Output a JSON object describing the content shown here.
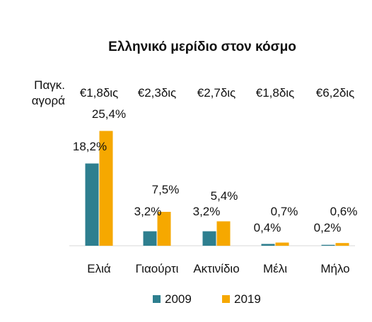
{
  "chart_data": {
    "type": "bar",
    "title": "Ελληνικό μερίδιο στον κόσμο",
    "market_label": [
      "Παγκ.",
      "αγορά"
    ],
    "categories": [
      "Ελιά",
      "Γιαούρτι",
      "Ακτινίδιο",
      "Μέλι",
      "Μήλο"
    ],
    "market_values": [
      "€1,8δις",
      "€2,3δις",
      "€2,7δις",
      "€1,8δις",
      "€6,2δις"
    ],
    "series": [
      {
        "name": "2009",
        "color": "#2e7f8f",
        "values": [
          18.2,
          3.2,
          3.2,
          0.4,
          0.2
        ],
        "labels": [
          "18,2%",
          "3,2%",
          "3,2%",
          "0,4%",
          "0,2%"
        ]
      },
      {
        "name": "2019",
        "color": "#f6a800",
        "values": [
          25.4,
          7.5,
          5.4,
          0.7,
          0.6
        ],
        "labels": [
          "25,4%",
          "7,5%",
          "5,4%",
          "0,7%",
          "0,6%"
        ]
      }
    ],
    "ylim": [
      0,
      30
    ],
    "grid": false,
    "legend": "bottom"
  }
}
